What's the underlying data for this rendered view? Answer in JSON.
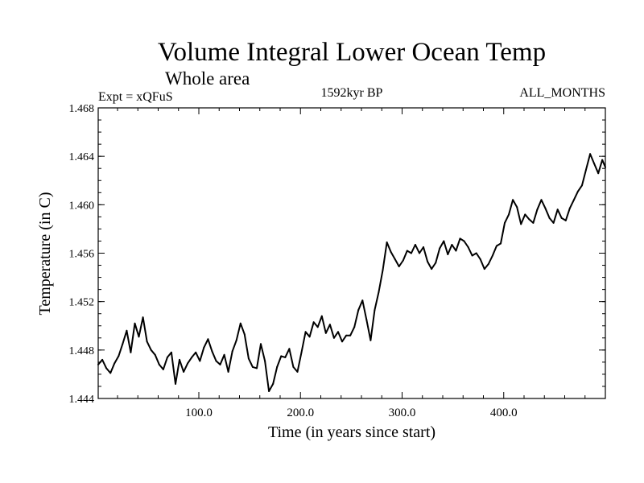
{
  "chart_data": {
    "type": "line",
    "title": "Volume Integral Lower Ocean Temp",
    "subtitle": "Whole area",
    "left_label": "Expt = xQFuS",
    "center_label": "1592kyr BP",
    "right_label": "ALL_MONTHS",
    "xlabel": "Time (in years since start)",
    "ylabel": "Temperature (in C)",
    "xlim": [
      1,
      500
    ],
    "ylim": [
      1.444,
      1.468
    ],
    "xticks": [
      100,
      200,
      300,
      400
    ],
    "xtick_labels": [
      "100.0",
      "200.0",
      "300.0",
      "400.0"
    ],
    "yticks": [
      1.444,
      1.448,
      1.452,
      1.456,
      1.46,
      1.464,
      1.468
    ],
    "ytick_labels": [
      "1.444",
      "1.448",
      "1.452",
      "1.456",
      "1.460",
      "1.464",
      "1.468"
    ],
    "line_color": "#000000",
    "series": [
      {
        "name": "Volume Integral Lower Ocean Temp",
        "x": [
          1,
          5,
          9,
          13,
          17,
          21,
          25,
          29,
          33,
          37,
          41,
          45,
          49,
          53,
          57,
          61,
          65,
          69,
          73,
          77,
          81,
          85,
          89,
          93,
          97,
          101,
          105,
          109,
          113,
          117,
          121,
          125,
          129,
          133,
          137,
          141,
          145,
          149,
          153,
          157,
          161,
          165,
          169,
          173,
          177,
          181,
          185,
          189,
          193,
          197,
          201,
          205,
          209,
          213,
          217,
          221,
          225,
          229,
          233,
          237,
          241,
          245,
          249,
          253,
          257,
          261,
          265,
          269,
          273,
          277,
          281,
          285,
          289,
          293,
          297,
          301,
          305,
          309,
          313,
          317,
          321,
          325,
          329,
          333,
          337,
          341,
          345,
          349,
          353,
          357,
          361,
          365,
          369,
          373,
          377,
          381,
          385,
          389,
          393,
          397,
          401,
          405,
          409,
          413,
          417,
          421,
          425,
          429,
          433,
          437,
          441,
          445,
          449,
          453,
          457,
          461,
          465,
          469,
          473,
          477,
          481,
          485,
          489,
          493,
          497,
          500
        ],
        "values": [
          1.4468,
          1.4472,
          1.4465,
          1.4461,
          1.4469,
          1.4475,
          1.4485,
          1.4496,
          1.4478,
          1.4502,
          1.4491,
          1.4507,
          1.4487,
          1.448,
          1.4476,
          1.4468,
          1.4464,
          1.4474,
          1.4478,
          1.4452,
          1.4472,
          1.4462,
          1.4469,
          1.4474,
          1.4478,
          1.4471,
          1.4482,
          1.4489,
          1.4479,
          1.4471,
          1.4468,
          1.4476,
          1.4462,
          1.4479,
          1.4488,
          1.4502,
          1.4493,
          1.4473,
          1.4466,
          1.4465,
          1.4485,
          1.4471,
          1.4446,
          1.4452,
          1.4466,
          1.4475,
          1.4474,
          1.4481,
          1.4466,
          1.4462,
          1.4478,
          1.4495,
          1.4491,
          1.4503,
          1.4499,
          1.4508,
          1.4494,
          1.4501,
          1.449,
          1.4495,
          1.4487,
          1.4492,
          1.4492,
          1.4499,
          1.4513,
          1.4521,
          1.4505,
          1.4488,
          1.4513,
          1.4528,
          1.4546,
          1.4569,
          1.4561,
          1.4555,
          1.4549,
          1.4554,
          1.4562,
          1.456,
          1.4567,
          1.456,
          1.4565,
          1.4553,
          1.4547,
          1.4552,
          1.4564,
          1.457,
          1.4559,
          1.4567,
          1.4562,
          1.4572,
          1.457,
          1.4565,
          1.4558,
          1.456,
          1.4555,
          1.4547,
          1.4551,
          1.4558,
          1.4566,
          1.4568,
          1.4585,
          1.4592,
          1.4604,
          1.4598,
          1.4584,
          1.4592,
          1.4588,
          1.4585,
          1.4596,
          1.4604,
          1.4597,
          1.4589,
          1.4585,
          1.4596,
          1.4589,
          1.4587,
          1.4597,
          1.4604,
          1.4611,
          1.4616,
          1.4629,
          1.4642,
          1.4634,
          1.4626,
          1.4637,
          1.4631
        ]
      }
    ]
  }
}
